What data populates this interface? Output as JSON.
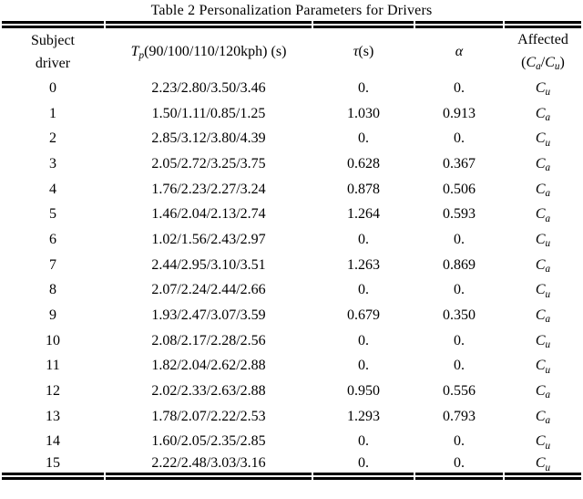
{
  "page": {
    "background_color": "#ffffff",
    "text_color": "#000000"
  },
  "table": {
    "caption": "Table 2 Personalization Parameters for Drivers",
    "header": {
      "subject_line1": "Subject",
      "subject_line2": "driver",
      "tp_symbol": "T",
      "tp_subscript": "p",
      "tp_rest": "(90/100/110/120kph) (s)",
      "tau_symbol": "τ",
      "tau_rest": "(s)",
      "alpha_symbol": "α",
      "affected_line1": "Affected",
      "affected_open_paren": "(",
      "affected_c1": "C",
      "affected_sub1": "a",
      "affected_slash": "/",
      "affected_c2": "C",
      "affected_sub2": "u",
      "affected_close_paren": ")"
    },
    "rows": [
      {
        "driver": "0",
        "tp": "2.23/2.80/3.50/3.46",
        "tau": "0.",
        "alpha": "0.",
        "affected_base": "C",
        "affected_sub": "u"
      },
      {
        "driver": "1",
        "tp": "1.50/1.11/0.85/1.25",
        "tau": "1.030",
        "alpha": "0.913",
        "affected_base": "C",
        "affected_sub": "a"
      },
      {
        "driver": "2",
        "tp": "2.85/3.12/3.80/4.39",
        "tau": "0.",
        "alpha": "0.",
        "affected_base": "C",
        "affected_sub": "u"
      },
      {
        "driver": "3",
        "tp": "2.05/2.72/3.25/3.75",
        "tau": "0.628",
        "alpha": "0.367",
        "affected_base": "C",
        "affected_sub": "a"
      },
      {
        "driver": "4",
        "tp": "1.76/2.23/2.27/3.24",
        "tau": "0.878",
        "alpha": "0.506",
        "affected_base": "C",
        "affected_sub": "a"
      },
      {
        "driver": "5",
        "tp": "1.46/2.04/2.13/2.74",
        "tau": "1.264",
        "alpha": "0.593",
        "affected_base": "C",
        "affected_sub": "a"
      },
      {
        "driver": "6",
        "tp": "1.02/1.56/2.43/2.97",
        "tau": "0.",
        "alpha": "0.",
        "affected_base": "C",
        "affected_sub": "u"
      },
      {
        "driver": "7",
        "tp": "2.44/2.95/3.10/3.51",
        "tau": "1.263",
        "alpha": "0.869",
        "affected_base": "C",
        "affected_sub": "a"
      },
      {
        "driver": "8",
        "tp": "2.07/2.24/2.44/2.66",
        "tau": "0.",
        "alpha": "0.",
        "affected_base": "C",
        "affected_sub": "u"
      },
      {
        "driver": "9",
        "tp": "1.93/2.47/3.07/3.59",
        "tau": "0.679",
        "alpha": "0.350",
        "affected_base": "C",
        "affected_sub": "a"
      },
      {
        "driver": "10",
        "tp": "2.08/2.17/2.28/2.56",
        "tau": "0.",
        "alpha": "0.",
        "affected_base": "C",
        "affected_sub": "u"
      },
      {
        "driver": "11",
        "tp": "1.82/2.04/2.62/2.88",
        "tau": "0.",
        "alpha": "0.",
        "affected_base": "C",
        "affected_sub": "u"
      },
      {
        "driver": "12",
        "tp": "2.02/2.33/2.63/2.88",
        "tau": "0.950",
        "alpha": "0.556",
        "affected_base": "C",
        "affected_sub": "a"
      },
      {
        "driver": "13",
        "tp": "1.78/2.07/2.22/2.53",
        "tau": "1.293",
        "alpha": "0.793",
        "affected_base": "C",
        "affected_sub": "a"
      },
      {
        "driver": "14",
        "tp": "1.60/2.05/2.35/2.85",
        "tau": "0.",
        "alpha": "0.",
        "affected_base": "C",
        "affected_sub": "u"
      },
      {
        "driver": "15",
        "tp": "2.22/2.48/3.03/3.16",
        "tau": "0.",
        "alpha": "0.",
        "affected_base": "C",
        "affected_sub": "u"
      }
    ]
  }
}
